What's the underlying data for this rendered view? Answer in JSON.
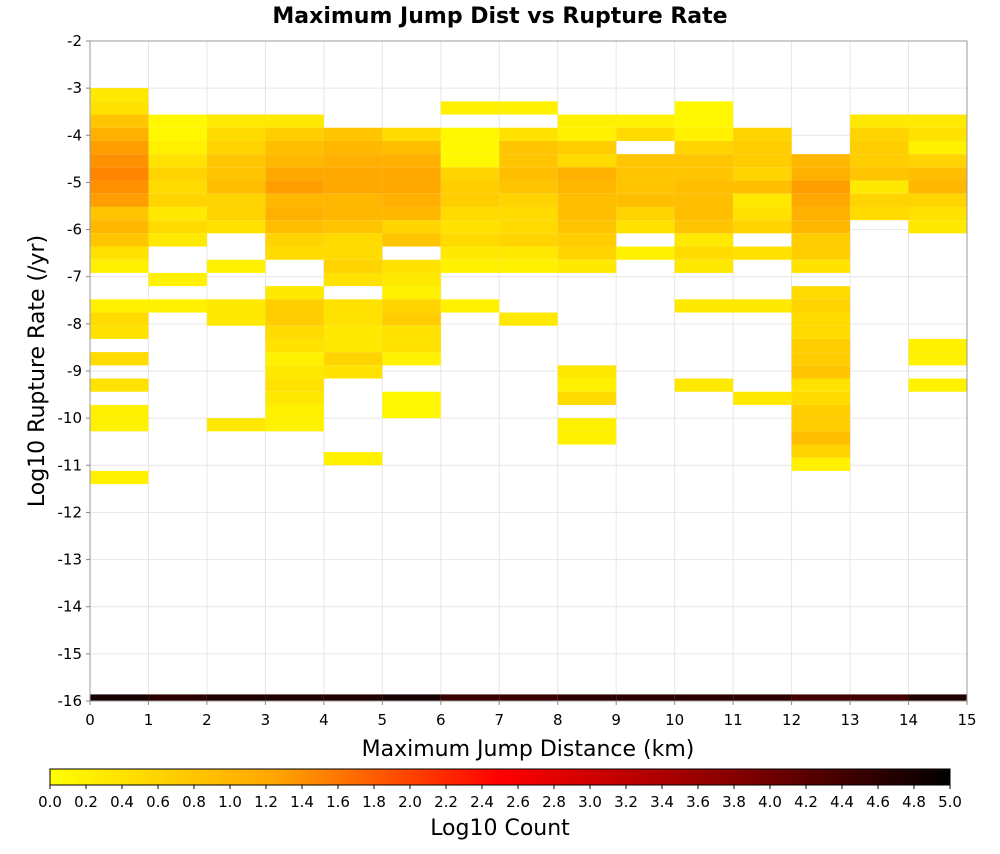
{
  "chart_data": {
    "type": "heatmap",
    "title": "Maximum Jump Dist vs Rupture Rate",
    "xlabel": "Maximum Jump Distance (km)",
    "ylabel": "Log10 Rupture Rate (/yr)",
    "xlim": [
      0,
      15
    ],
    "ylim": [
      -16,
      -2
    ],
    "x_ticks": [
      "0",
      "1",
      "2",
      "3",
      "4",
      "5",
      "6",
      "7",
      "8",
      "9",
      "10",
      "11",
      "12",
      "13",
      "14",
      "15"
    ],
    "y_ticks": [
      "-2",
      "-3",
      "-4",
      "-5",
      "-6",
      "-7",
      "-8",
      "-9",
      "-10",
      "-11",
      "-12",
      "-13",
      "-14",
      "-15",
      "-16"
    ],
    "x_bin_width": 1,
    "y_bin_height": 0.28,
    "grid": true,
    "colorbar": {
      "label": "Log10 Count",
      "range": [
        0,
        5
      ],
      "ticks": [
        "0.0",
        "0.2",
        "0.4",
        "0.6",
        "0.8",
        "1.0",
        "1.2",
        "1.4",
        "1.6",
        "1.8",
        "2.0",
        "2.2",
        "2.4",
        "2.6",
        "2.8",
        "3.0",
        "3.2",
        "3.4",
        "3.6",
        "3.8",
        "4.0",
        "4.2",
        "4.4",
        "4.6",
        "4.8",
        "5.0"
      ],
      "colors": [
        "#ffff00",
        "#ffa500",
        "#ff0000",
        "#8b0000",
        "#000000"
      ]
    },
    "columns": [
      {
        "x": 0,
        "cells": [
          [
            -3.14,
            0.3
          ],
          [
            -3.42,
            0.4
          ],
          [
            -3.7,
            0.8
          ],
          [
            -3.98,
            1.1
          ],
          [
            -4.26,
            1.3
          ],
          [
            -4.54,
            1.4
          ],
          [
            -4.82,
            1.5
          ],
          [
            -5.1,
            1.4
          ],
          [
            -5.38,
            1.3
          ],
          [
            -5.66,
            0.8
          ],
          [
            -5.94,
            1.0
          ],
          [
            -6.22,
            0.8
          ],
          [
            -6.5,
            0.4
          ],
          [
            -6.78,
            0.2
          ],
          [
            -7.62,
            0.2
          ],
          [
            -7.9,
            0.5
          ],
          [
            -8.18,
            0.4
          ],
          [
            -8.74,
            0.5
          ],
          [
            -9.3,
            0.4
          ],
          [
            -9.86,
            0.2
          ],
          [
            -10.14,
            0.2
          ],
          [
            -11.26,
            0.2
          ],
          [
            -16.0,
            4.8
          ]
        ]
      },
      {
        "x": 1,
        "cells": [
          [
            -3.7,
            0.1
          ],
          [
            -3.98,
            0.1
          ],
          [
            -4.26,
            0.2
          ],
          [
            -4.54,
            0.4
          ],
          [
            -4.82,
            0.6
          ],
          [
            -5.1,
            0.5
          ],
          [
            -5.38,
            0.6
          ],
          [
            -5.66,
            0.3
          ],
          [
            -5.94,
            0.5
          ],
          [
            -6.22,
            0.3
          ],
          [
            -7.06,
            0.2
          ],
          [
            -7.62,
            0.2
          ],
          [
            -16.0,
            4.6
          ]
        ]
      },
      {
        "x": 2,
        "cells": [
          [
            -3.7,
            0.3
          ],
          [
            -3.98,
            0.5
          ],
          [
            -4.26,
            0.6
          ],
          [
            -4.54,
            0.8
          ],
          [
            -4.82,
            0.8
          ],
          [
            -5.1,
            0.9
          ],
          [
            -5.38,
            0.6
          ],
          [
            -5.66,
            0.6
          ],
          [
            -5.94,
            0.4
          ],
          [
            -6.78,
            0.2
          ],
          [
            -7.62,
            0.3
          ],
          [
            -7.9,
            0.3
          ],
          [
            -10.14,
            0.3
          ],
          [
            -16.0,
            4.7
          ]
        ]
      },
      {
        "x": 3,
        "cells": [
          [
            -3.7,
            0.3
          ],
          [
            -3.98,
            0.7
          ],
          [
            -4.26,
            0.9
          ],
          [
            -4.54,
            1.0
          ],
          [
            -4.82,
            1.2
          ],
          [
            -5.1,
            1.3
          ],
          [
            -5.38,
            1.0
          ],
          [
            -5.66,
            1.1
          ],
          [
            -5.94,
            0.9
          ],
          [
            -6.22,
            0.6
          ],
          [
            -6.5,
            0.5
          ],
          [
            -7.34,
            0.3
          ],
          [
            -7.62,
            0.7
          ],
          [
            -7.9,
            0.7
          ],
          [
            -8.18,
            0.5
          ],
          [
            -8.46,
            0.4
          ],
          [
            -8.74,
            0.2
          ],
          [
            -9.02,
            0.3
          ],
          [
            -9.3,
            0.4
          ],
          [
            -9.58,
            0.3
          ],
          [
            -9.86,
            0.2
          ],
          [
            -10.14,
            0.2
          ],
          [
            -16.0,
            4.7
          ]
        ]
      },
      {
        "x": 4,
        "cells": [
          [
            -3.98,
            0.8
          ],
          [
            -4.26,
            1.0
          ],
          [
            -4.54,
            1.1
          ],
          [
            -4.82,
            1.2
          ],
          [
            -5.1,
            1.2
          ],
          [
            -5.38,
            1.0
          ],
          [
            -5.66,
            1.0
          ],
          [
            -5.94,
            0.8
          ],
          [
            -6.22,
            0.5
          ],
          [
            -6.5,
            0.5
          ],
          [
            -6.78,
            0.6
          ],
          [
            -7.06,
            0.4
          ],
          [
            -7.62,
            0.4
          ],
          [
            -7.9,
            0.4
          ],
          [
            -8.18,
            0.3
          ],
          [
            -8.46,
            0.3
          ],
          [
            -8.74,
            0.6
          ],
          [
            -9.02,
            0.4
          ],
          [
            -10.86,
            0.2
          ],
          [
            -16.0,
            4.7
          ]
        ]
      },
      {
        "x": 5,
        "cells": [
          [
            -3.98,
            0.5
          ],
          [
            -4.26,
            0.9
          ],
          [
            -4.54,
            1.1
          ],
          [
            -4.82,
            1.2
          ],
          [
            -5.1,
            1.2
          ],
          [
            -5.38,
            1.1
          ],
          [
            -5.66,
            1.0
          ],
          [
            -5.94,
            0.6
          ],
          [
            -6.22,
            0.8
          ],
          [
            -6.78,
            0.4
          ],
          [
            -7.06,
            0.3
          ],
          [
            -7.34,
            0.2
          ],
          [
            -7.62,
            0.6
          ],
          [
            -7.9,
            0.7
          ],
          [
            -8.18,
            0.4
          ],
          [
            -8.46,
            0.4
          ],
          [
            -8.74,
            0.2
          ],
          [
            -9.58,
            0.1
          ],
          [
            -9.86,
            0.1
          ],
          [
            -16.0,
            4.8
          ]
        ]
      },
      {
        "x": 6,
        "cells": [
          [
            -3.42,
            0.2
          ],
          [
            -3.98,
            0.1
          ],
          [
            -4.26,
            0.1
          ],
          [
            -4.54,
            0.1
          ],
          [
            -4.82,
            0.6
          ],
          [
            -5.1,
            0.7
          ],
          [
            -5.38,
            0.7
          ],
          [
            -5.66,
            0.5
          ],
          [
            -5.94,
            0.4
          ],
          [
            -6.22,
            0.5
          ],
          [
            -6.5,
            0.3
          ],
          [
            -6.78,
            0.2
          ],
          [
            -7.62,
            0.2
          ],
          [
            -16.0,
            4.5
          ]
        ]
      },
      {
        "x": 7,
        "cells": [
          [
            -3.42,
            0.2
          ],
          [
            -3.98,
            0.4
          ],
          [
            -4.26,
            0.8
          ],
          [
            -4.54,
            0.8
          ],
          [
            -4.82,
            0.9
          ],
          [
            -5.1,
            0.8
          ],
          [
            -5.38,
            0.6
          ],
          [
            -5.66,
            0.5
          ],
          [
            -5.94,
            0.5
          ],
          [
            -6.22,
            0.6
          ],
          [
            -6.5,
            0.3
          ],
          [
            -6.78,
            0.2
          ],
          [
            -7.9,
            0.3
          ],
          [
            -16.0,
            4.5
          ]
        ]
      },
      {
        "x": 8,
        "cells": [
          [
            -3.7,
            0.2
          ],
          [
            -3.98,
            0.2
          ],
          [
            -4.26,
            0.7
          ],
          [
            -4.54,
            0.5
          ],
          [
            -4.82,
            1.1
          ],
          [
            -5.1,
            1.0
          ],
          [
            -5.38,
            0.9
          ],
          [
            -5.66,
            0.9
          ],
          [
            -5.94,
            0.8
          ],
          [
            -6.22,
            0.7
          ],
          [
            -6.5,
            0.6
          ],
          [
            -6.78,
            0.3
          ],
          [
            -9.02,
            0.3
          ],
          [
            -9.3,
            0.2
          ],
          [
            -9.58,
            0.5
          ],
          [
            -10.14,
            0.2
          ],
          [
            -10.42,
            0.2
          ],
          [
            -16.0,
            4.6
          ]
        ]
      },
      {
        "x": 9,
        "cells": [
          [
            -3.7,
            0.2
          ],
          [
            -3.98,
            0.5
          ],
          [
            -4.54,
            0.8
          ],
          [
            -4.82,
            0.8
          ],
          [
            -5.1,
            0.8
          ],
          [
            -5.38,
            0.9
          ],
          [
            -5.66,
            0.6
          ],
          [
            -5.94,
            0.4
          ],
          [
            -6.5,
            0.2
          ],
          [
            -16.0,
            4.6
          ]
        ]
      },
      {
        "x": 10,
        "cells": [
          [
            -3.42,
            0.1
          ],
          [
            -3.7,
            0.1
          ],
          [
            -3.98,
            0.2
          ],
          [
            -4.26,
            0.6
          ],
          [
            -4.54,
            0.8
          ],
          [
            -4.82,
            0.8
          ],
          [
            -5.1,
            0.9
          ],
          [
            -5.38,
            0.9
          ],
          [
            -5.66,
            0.9
          ],
          [
            -5.94,
            0.8
          ],
          [
            -6.22,
            0.3
          ],
          [
            -6.5,
            0.5
          ],
          [
            -6.78,
            0.3
          ],
          [
            -7.62,
            0.3
          ],
          [
            -9.3,
            0.3
          ],
          [
            -16.0,
            4.6
          ]
        ]
      },
      {
        "x": 11,
        "cells": [
          [
            -3.98,
            0.6
          ],
          [
            -4.26,
            0.7
          ],
          [
            -4.54,
            0.7
          ],
          [
            -4.82,
            0.6
          ],
          [
            -5.1,
            0.9
          ],
          [
            -5.38,
            0.3
          ],
          [
            -5.66,
            0.4
          ],
          [
            -5.94,
            0.6
          ],
          [
            -6.5,
            0.4
          ],
          [
            -7.62,
            0.3
          ],
          [
            -9.58,
            0.3
          ],
          [
            -16.0,
            4.6
          ]
        ]
      },
      {
        "x": 12,
        "cells": [
          [
            -4.54,
            1.0
          ],
          [
            -4.82,
            1.1
          ],
          [
            -5.1,
            1.3
          ],
          [
            -5.38,
            1.2
          ],
          [
            -5.66,
            1.1
          ],
          [
            -5.94,
            1.0
          ],
          [
            -6.22,
            0.7
          ],
          [
            -6.5,
            0.7
          ],
          [
            -6.78,
            0.4
          ],
          [
            -7.34,
            0.5
          ],
          [
            -7.62,
            0.6
          ],
          [
            -7.9,
            0.5
          ],
          [
            -8.18,
            0.5
          ],
          [
            -8.46,
            0.7
          ],
          [
            -8.74,
            0.7
          ],
          [
            -9.02,
            0.8
          ],
          [
            -9.3,
            0.4
          ],
          [
            -9.58,
            0.5
          ],
          [
            -9.86,
            0.7
          ],
          [
            -10.14,
            0.7
          ],
          [
            -10.42,
            0.9
          ],
          [
            -10.7,
            0.6
          ],
          [
            -10.98,
            0.2
          ],
          [
            -16.0,
            4.4
          ]
        ]
      },
      {
        "x": 13,
        "cells": [
          [
            -3.7,
            0.3
          ],
          [
            -3.98,
            0.6
          ],
          [
            -4.26,
            0.7
          ],
          [
            -4.54,
            0.7
          ],
          [
            -4.82,
            0.8
          ],
          [
            -5.1,
            0.3
          ],
          [
            -5.38,
            0.6
          ],
          [
            -5.66,
            0.5
          ],
          [
            -16.0,
            4.4
          ]
        ]
      },
      {
        "x": 14,
        "cells": [
          [
            -3.7,
            0.3
          ],
          [
            -3.98,
            0.4
          ],
          [
            -4.26,
            0.2
          ],
          [
            -4.54,
            0.6
          ],
          [
            -4.82,
            0.9
          ],
          [
            -5.1,
            1.0
          ],
          [
            -5.38,
            0.6
          ],
          [
            -5.66,
            0.4
          ],
          [
            -5.94,
            0.3
          ],
          [
            -8.46,
            0.2
          ],
          [
            -8.74,
            0.2
          ],
          [
            -9.3,
            0.2
          ],
          [
            -16.0,
            4.7
          ]
        ]
      }
    ]
  }
}
